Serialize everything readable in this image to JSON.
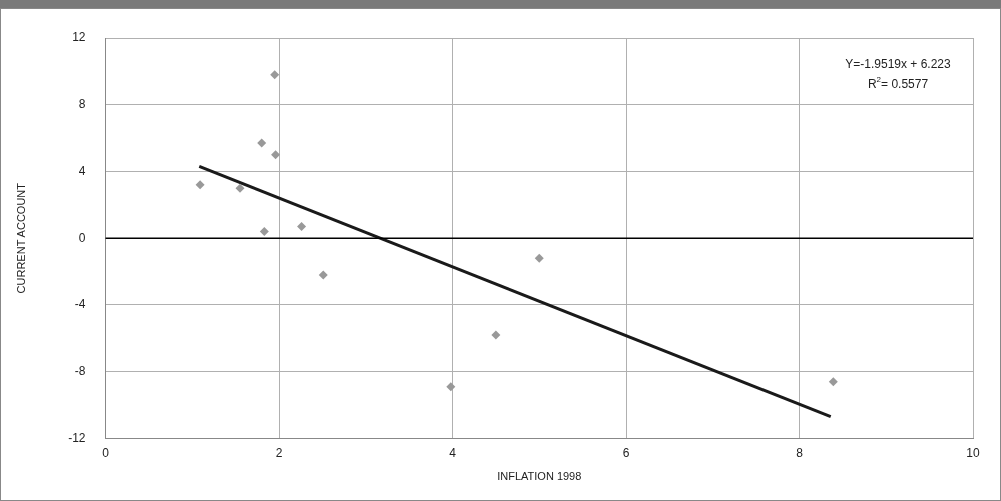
{
  "chart_data": {
    "type": "scatter",
    "xlabel": "INFLATION 1998",
    "ylabel": "CURRENT ACCOUNT",
    "x": [
      1.09,
      1.55,
      1.8,
      1.95,
      1.96,
      1.83,
      2.26,
      2.51,
      3.98,
      4.5,
      5.0,
      8.39
    ],
    "series": [
      {
        "color": "#999999",
        "marker": "diamond",
        "values": [
          3.2,
          3.0,
          5.7,
          9.8,
          5.0,
          0.4,
          0.7,
          -2.2,
          -8.9,
          -5.8,
          -1.2,
          -8.6
        ]
      },
      {
        "type": "line",
        "color": "#1a1a1a",
        "marker": "none",
        "x": [
          1.08,
          8.36
        ],
        "values": [
          4.3,
          -10.7
        ]
      }
    ],
    "xlim": [
      0,
      10
    ],
    "xticks": [
      0,
      2,
      4,
      6,
      8,
      10
    ],
    "ylim": [
      -12,
      12
    ],
    "yticks": [
      -12,
      -8,
      -4,
      0,
      4,
      8,
      12
    ],
    "grid": true,
    "legend": false,
    "ref_lines": [
      {
        "axis": "y",
        "value": 0,
        "color": "#000000"
      }
    ],
    "annotations": [
      "Y=-1.9519x + 6.223",
      "R$^{2}$= 0.5577"
    ]
  }
}
